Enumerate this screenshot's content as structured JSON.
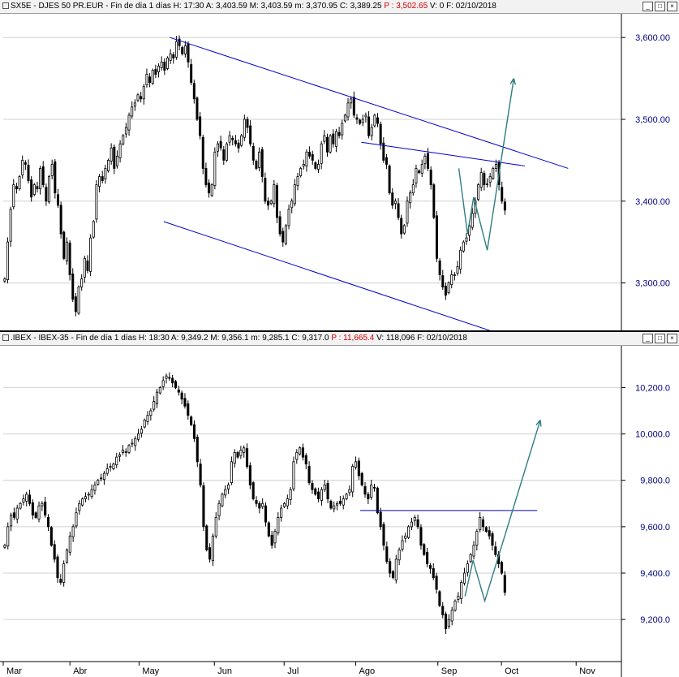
{
  "top_panel": {
    "title": {
      "symbol": "SX5E",
      "name": "DJES 50 PR.EUR",
      "period": "Fin de día 1 días",
      "H": "17:30",
      "A": "3,403.59",
      "M": "3,403.59",
      "m": "3,370.95",
      "C": "3,389.25",
      "P": "3,502.65",
      "V": "0",
      "F": "02/10/2018"
    }
  },
  "bottom_panel": {
    "title": {
      "symbol": ".IBEX",
      "name": "IBEX-35",
      "period": "Fin de día 1 días",
      "H": "18:30",
      "A": "9,349.2",
      "M": "9,356.1",
      "m": "9,285.1",
      "C": "9,317.0",
      "P": "11,665.4",
      "V": "118,096",
      "F": "02/10/2018"
    }
  },
  "window_buttons": [
    "_",
    "□",
    "×"
  ],
  "colors": {
    "candle": "#000000",
    "trendline": "#0000cc",
    "projection": "#2e7d82",
    "axis_text": "#000080",
    "grid": "#d0d0d0"
  },
  "chart_data": [
    {
      "type": "candlestick",
      "name": "SX5E",
      "x_axis_labels": [
        "Mar",
        "Abr",
        "May",
        "Jun",
        "Jul",
        "Ago",
        "Sep",
        "Oct",
        "Nov"
      ],
      "y_ticks": [
        "3,600.00",
        "3,500.00",
        "3,400.00",
        "3,300.00"
      ],
      "ylim": [
        3245,
        3625
      ],
      "closes_approx": [
        3305,
        3350,
        3390,
        3420,
        3415,
        3430,
        3450,
        3445,
        3425,
        3405,
        3420,
        3415,
        3440,
        3420,
        3400,
        3430,
        3445,
        3410,
        3395,
        3360,
        3330,
        3350,
        3310,
        3280,
        3265,
        3295,
        3305,
        3330,
        3315,
        3355,
        3375,
        3420,
        3430,
        3425,
        3440,
        3450,
        3465,
        3440,
        3455,
        3470,
        3480,
        3490,
        3505,
        3515,
        3520,
        3530,
        3525,
        3540,
        3555,
        3545,
        3560,
        3555,
        3565,
        3570,
        3560,
        3575,
        3580,
        3575,
        3595,
        3590,
        3580,
        3590,
        3570,
        3545,
        3525,
        3500,
        3480,
        3440,
        3420,
        3410,
        3420,
        3460,
        3470,
        3465,
        3450,
        3470,
        3480,
        3475,
        3470,
        3465,
        3480,
        3500,
        3490,
        3470,
        3450,
        3440,
        3460,
        3430,
        3400,
        3395,
        3400,
        3420,
        3380,
        3360,
        3350,
        3370,
        3390,
        3400,
        3420,
        3430,
        3440,
        3445,
        3460,
        3455,
        3450,
        3440,
        3445,
        3470,
        3480,
        3460,
        3480,
        3470,
        3485,
        3480,
        3495,
        3505,
        3520,
        3525,
        3505,
        3500,
        3495,
        3500,
        3505,
        3480,
        3490,
        3505,
        3495,
        3470,
        3450,
        3445,
        3410,
        3395,
        3400,
        3380,
        3360,
        3370,
        3400,
        3410,
        3420,
        3440,
        3435,
        3445,
        3455,
        3440,
        3420,
        3380,
        3330,
        3310,
        3295,
        3285,
        3300,
        3310,
        3310,
        3320,
        3340,
        3350,
        3355,
        3370,
        3385,
        3400,
        3420,
        3435,
        3420,
        3420,
        3430,
        3440,
        3445,
        3420,
        3400,
        3389
      ],
      "annotations": {
        "channel_upper": [
          [
            0.27,
            3600
          ],
          [
            0.915,
            3440
          ]
        ],
        "channel_lower": [
          [
            0.26,
            3375
          ],
          [
            0.835,
            3230
          ]
        ],
        "triangle_top": [
          [
            0.58,
            3472
          ],
          [
            0.845,
            3443
          ]
        ],
        "projection": [
          [
            0.738,
            3440
          ],
          [
            0.752,
            3360
          ],
          [
            0.762,
            3405
          ],
          [
            0.784,
            3340
          ],
          [
            0.827,
            3550
          ]
        ]
      }
    },
    {
      "type": "candlestick",
      "name": ".IBEX",
      "x_axis_labels": [
        "Mar",
        "Abr",
        "May",
        "Jun",
        "Jul",
        "Ago",
        "Sep",
        "Oct",
        "Nov"
      ],
      "y_ticks": [
        "10,200.0",
        "10,000.0",
        "9,800.0",
        "9,600.0",
        "9,400.0",
        "9,200.0"
      ],
      "ylim": [
        9085,
        10310
      ],
      "closes_approx": [
        9520,
        9600,
        9650,
        9640,
        9680,
        9700,
        9720,
        9740,
        9700,
        9650,
        9640,
        9690,
        9700,
        9650,
        9600,
        9520,
        9460,
        9380,
        9360,
        9440,
        9500,
        9560,
        9600,
        9660,
        9700,
        9720,
        9730,
        9740,
        9760,
        9780,
        9800,
        9810,
        9830,
        9850,
        9860,
        9870,
        9900,
        9910,
        9930,
        9920,
        9950,
        9960,
        9980,
        10000,
        10020,
        10060,
        10080,
        10100,
        10140,
        10180,
        10200,
        10230,
        10250,
        10240,
        10220,
        10200,
        10180,
        10150,
        10120,
        10080,
        10040,
        9980,
        9880,
        9780,
        9600,
        9500,
        9460,
        9560,
        9640,
        9700,
        9740,
        9760,
        9780,
        9880,
        9920,
        9900,
        9930,
        9940,
        9860,
        9780,
        9720,
        9700,
        9680,
        9700,
        9620,
        9560,
        9520,
        9580,
        9640,
        9680,
        9700,
        9720,
        9760,
        9880,
        9920,
        9940,
        9900,
        9870,
        9790,
        9760,
        9740,
        9720,
        9760,
        9780,
        9720,
        9680,
        9690,
        9700,
        9700,
        9720,
        9740,
        9760,
        9860,
        9880,
        9820,
        9780,
        9740,
        9720,
        9780,
        9770,
        9660,
        9600,
        9520,
        9450,
        9400,
        9380,
        9460,
        9500,
        9540,
        9560,
        9600,
        9620,
        9640,
        9600,
        9520,
        9480,
        9440,
        9420,
        9380,
        9330,
        9260,
        9220,
        9160,
        9200,
        9240,
        9280,
        9300,
        9360,
        9400,
        9440,
        9480,
        9520,
        9580,
        9640,
        9600,
        9580,
        9560,
        9520,
        9480,
        9440,
        9400,
        9317
      ],
      "annotations": {
        "resistance": [
          [
            0.578,
            9670
          ],
          [
            0.865,
            9670
          ]
        ],
        "projection": [
          [
            0.748,
            9300
          ],
          [
            0.761,
            9455
          ],
          [
            0.78,
            9280
          ],
          [
            0.87,
            10060
          ]
        ]
      }
    }
  ]
}
